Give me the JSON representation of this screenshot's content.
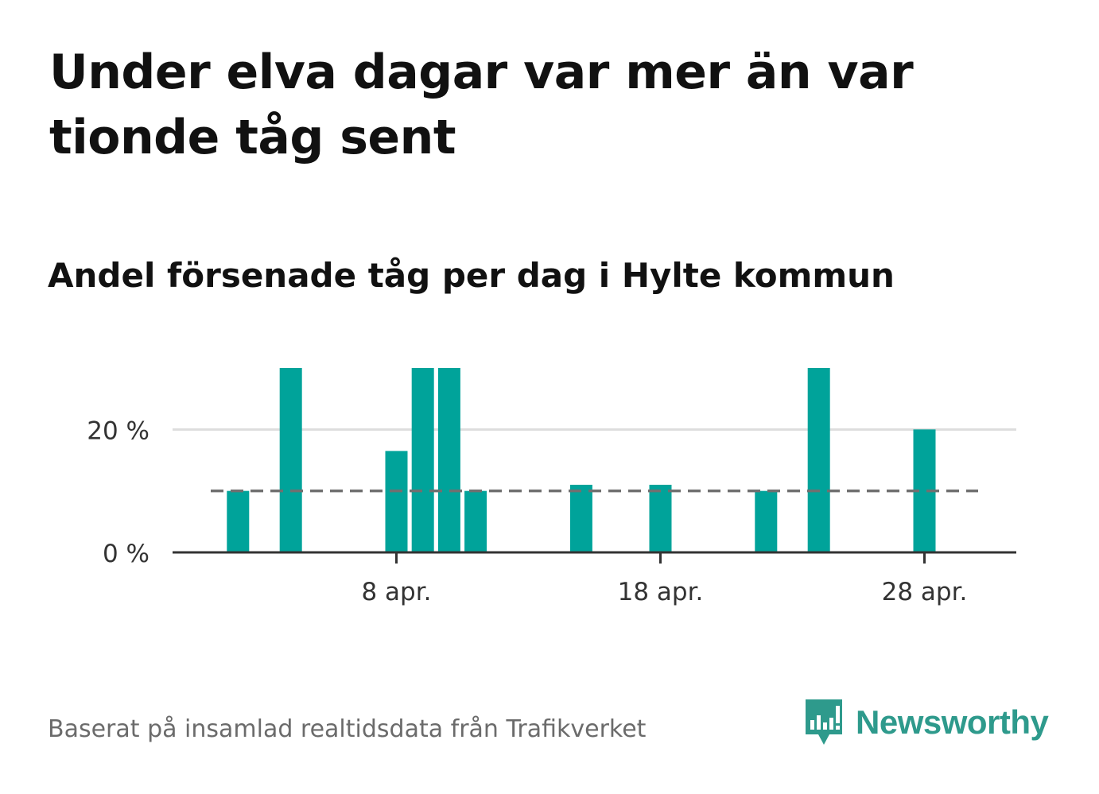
{
  "title": "Under elva dagar var mer än var tionde tåg sent",
  "subtitle": "Andel försenade tåg per dag i Hylte kommun",
  "footer": {
    "source": "Baserat på insamlad realtidsdata från Trafikverket",
    "brand": "Newsworthy",
    "brand_icon": "bar-chart-speech-bubble-icon"
  },
  "colors": {
    "bar": "#00a39a",
    "reference_line": "#707070",
    "grid": "#dddddd",
    "axis": "#333333",
    "brand": "#2e9a8c",
    "title": "#111111",
    "footer_text": "#6b6b6b"
  },
  "chart_data": {
    "type": "bar",
    "title": "",
    "xlabel": "",
    "ylabel": "",
    "x_start": "2024-04-01",
    "x_end": "2024-04-30",
    "ylim": [
      0,
      30
    ],
    "y_ticks": [
      {
        "value": 0,
        "label": "0 %"
      },
      {
        "value": 20,
        "label": "20 %"
      }
    ],
    "x_ticks": [
      {
        "date": "2024-04-08",
        "label": "8 apr."
      },
      {
        "date": "2024-04-18",
        "label": "18 apr."
      },
      {
        "date": "2024-04-28",
        "label": "28 apr."
      }
    ],
    "grid": "horizontal",
    "reference_line": {
      "value": 10,
      "style": "dashed"
    },
    "series": [
      {
        "points": [
          {
            "date": "2024-04-02",
            "value": 10
          },
          {
            "date": "2024-04-04",
            "value": 30
          },
          {
            "date": "2024-04-08",
            "value": 16.5
          },
          {
            "date": "2024-04-09",
            "value": 30
          },
          {
            "date": "2024-04-10",
            "value": 30
          },
          {
            "date": "2024-04-11",
            "value": 10
          },
          {
            "date": "2024-04-15",
            "value": 11
          },
          {
            "date": "2024-04-18",
            "value": 11
          },
          {
            "date": "2024-04-22",
            "value": 10
          },
          {
            "date": "2024-04-24",
            "value": 30
          },
          {
            "date": "2024-04-28",
            "value": 20
          }
        ]
      }
    ]
  }
}
